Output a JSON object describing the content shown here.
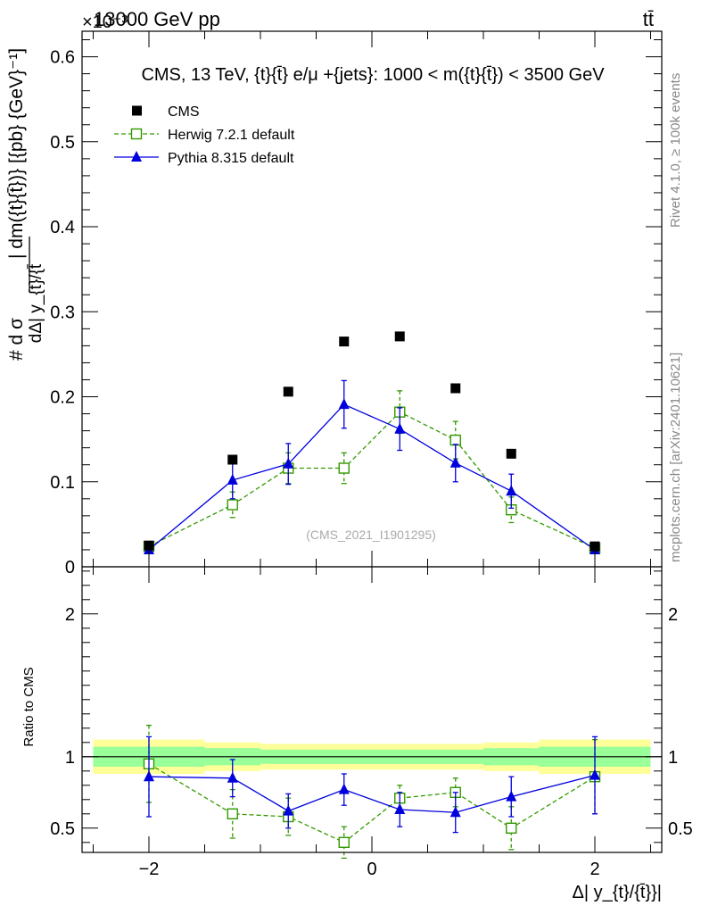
{
  "header": {
    "top_left": "13000 GeV pp",
    "top_right": "tt̄",
    "exponent": "×10⁻³"
  },
  "side_labels": {
    "rivet": "Rivet 4.1.0, ≥ 100k events",
    "mcplots": "mcplots.cern.ch [arXiv:2401.10621]"
  },
  "colors": {
    "data": "#000000",
    "herwig": "#339900",
    "pythia": "#0000dd",
    "band_inner": "#99ff99",
    "band_outer": "#ffff99"
  },
  "chart_data": [
    {
      "type": "scatter",
      "panel": "main",
      "title": "CMS, 13 TeV, {t}{t̄} e/μ +{jets}: 1000 < m({t}{t̄}) < 3500 GeV",
      "watermark": "(CMS_2021_I1901295)",
      "ylabel_numerator": "# d σ",
      "ylabel_denominator": "dΔ| y_{t}/{t̄",
      "ylabel_suffix": "| dm({t}{t̄})} [{pb} {GeV}⁻¹]",
      "xlim": [
        -2.6,
        2.6
      ],
      "ylim": [
        0,
        0.63
      ],
      "yticks": [
        0.1,
        0.2,
        0.3,
        0.4,
        0.5,
        0.6
      ],
      "ytick_labels": [
        "0.1",
        "0.2",
        "0.3",
        "0.4",
        "0.5",
        "0.6"
      ],
      "y_zero_label": "0",
      "legend": [
        {
          "key": "cms",
          "label": "CMS"
        },
        {
          "key": "herwig",
          "label": "Herwig 7.2.1 default"
        },
        {
          "key": "pythia",
          "label": "Pythia 8.315 default"
        }
      ],
      "series": [
        {
          "name": "CMS",
          "key": "cms",
          "x": [
            -2.0,
            -1.25,
            -0.75,
            -0.25,
            0.25,
            0.75,
            1.25,
            2.0
          ],
          "values": [
            0.025,
            0.126,
            0.206,
            0.265,
            0.271,
            0.21,
            0.133,
            0.024
          ]
        },
        {
          "name": "Herwig 7.2.1 default",
          "key": "herwig",
          "x": [
            -2.0,
            -1.25,
            -0.75,
            -0.25,
            0.25,
            0.75,
            1.25,
            2.0
          ],
          "values": [
            0.024,
            0.073,
            0.116,
            0.116,
            0.182,
            0.149,
            0.067,
            0.022
          ],
          "errors": [
            0.003,
            0.015,
            0.018,
            0.018,
            0.025,
            0.022,
            0.015,
            0.003
          ]
        },
        {
          "name": "Pythia 8.315 default",
          "key": "pythia",
          "x": [
            -2.0,
            -1.25,
            -0.75,
            -0.25,
            0.25,
            0.75,
            1.25,
            2.0
          ],
          "values": [
            0.02,
            0.102,
            0.121,
            0.191,
            0.162,
            0.122,
            0.089,
            0.02
          ],
          "errors": [
            0.004,
            0.022,
            0.024,
            0.028,
            0.025,
            0.022,
            0.02,
            0.004
          ]
        }
      ]
    },
    {
      "type": "scatter",
      "panel": "ratio",
      "xlabel": "Δ| y_{t}/{t̄}}|",
      "ylabel": "Ratio to CMS",
      "xlim": [
        -2.6,
        2.6
      ],
      "ylim": [
        0.33,
        2.33
      ],
      "xticks": [
        -2,
        0,
        2
      ],
      "xtick_labels": [
        "−2",
        "0",
        "2"
      ],
      "yticks": [
        0.5,
        1,
        2
      ],
      "ytick_labels": [
        "0.5",
        "1",
        "2"
      ],
      "band_edges": [
        -2.5,
        -1.5,
        -1.0,
        -0.5,
        0.0,
        0.5,
        1.0,
        1.5,
        2.5
      ],
      "band_inner": [
        0.07,
        0.06,
        0.05,
        0.05,
        0.05,
        0.05,
        0.06,
        0.07
      ],
      "band_outer": [
        0.12,
        0.1,
        0.09,
        0.09,
        0.09,
        0.09,
        0.1,
        0.12
      ],
      "series": [
        {
          "name": "Herwig 7.2.1 default",
          "key": "herwig",
          "x": [
            -2.0,
            -1.25,
            -0.75,
            -0.25,
            0.25,
            0.75,
            1.25,
            2.0
          ],
          "values": [
            0.95,
            0.6,
            0.58,
            0.4,
            0.71,
            0.75,
            0.5,
            0.86
          ],
          "errors": [
            0.27,
            0.17,
            0.13,
            0.11,
            0.09,
            0.1,
            0.15,
            0.26
          ]
        },
        {
          "name": "Pythia 8.315 default",
          "key": "pythia",
          "x": [
            -2.0,
            -1.25,
            -0.75,
            -0.25,
            0.25,
            0.75,
            1.25,
            2.0
          ],
          "values": [
            0.86,
            0.85,
            0.62,
            0.77,
            0.63,
            0.61,
            0.72,
            0.87
          ],
          "errors": [
            0.28,
            0.13,
            0.12,
            0.11,
            0.12,
            0.14,
            0.14,
            0.27
          ]
        }
      ]
    }
  ]
}
